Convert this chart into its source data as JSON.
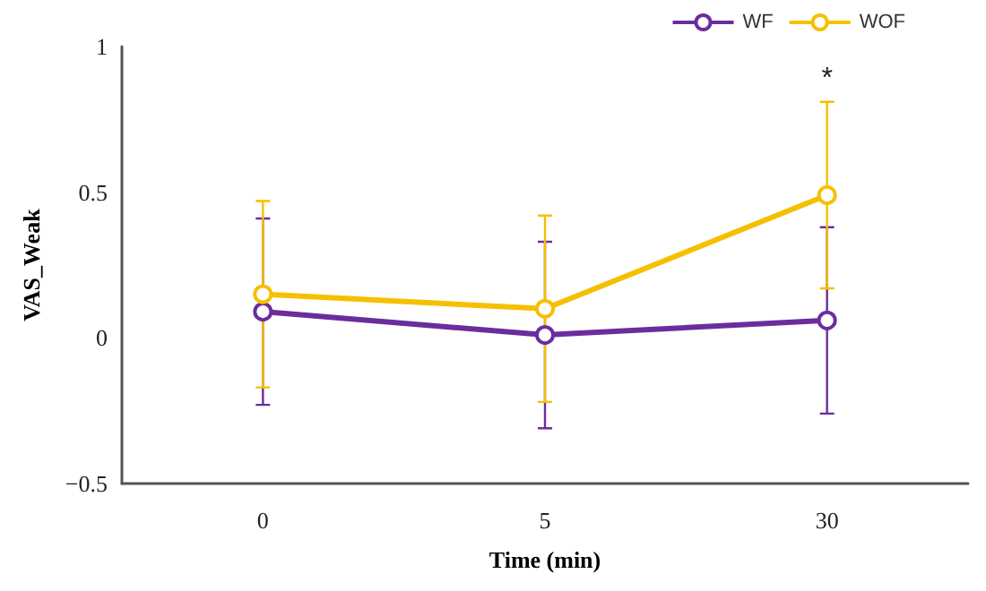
{
  "chart_data": {
    "type": "line",
    "xlabel": "Time (min)",
    "ylabel": "VAS_Weak",
    "categories": [
      "0",
      "5",
      "30"
    ],
    "series": [
      {
        "name": "WF",
        "color": "#6b2d9e",
        "values": [
          0.09,
          0.01,
          0.06
        ],
        "errors": [
          0.32,
          0.32,
          0.32
        ]
      },
      {
        "name": "WOF",
        "color": "#f5c000",
        "values": [
          0.15,
          0.1,
          0.49
        ],
        "errors": [
          0.32,
          0.32,
          0.32
        ]
      }
    ],
    "ylim": [
      -0.5,
      1
    ],
    "yticks": [
      {
        "value": -0.5,
        "label": "−0.5"
      },
      0,
      0.5,
      1
    ],
    "annotations": [
      "*"
    ],
    "grid": false,
    "legend": "top right",
    "marker": "circle",
    "line_style": "solid"
  }
}
